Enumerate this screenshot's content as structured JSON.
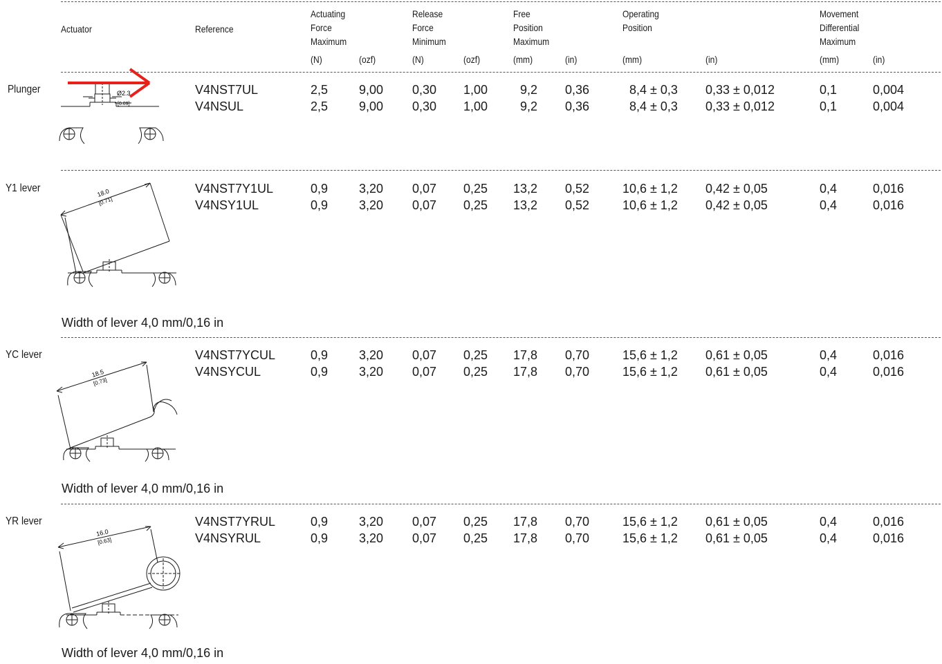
{
  "headers": [
    {
      "key": "actuator",
      "lines": [
        "Actuator"
      ]
    },
    {
      "key": "reference",
      "lines": [
        "Reference"
      ]
    },
    {
      "key": "actuating",
      "lines": [
        "Actuating",
        "Force",
        "Maximum"
      ]
    },
    {
      "key": "release",
      "lines": [
        "Release",
        "Force",
        "Minimum"
      ]
    },
    {
      "key": "free",
      "lines": [
        "Free",
        "Position",
        "Maximum"
      ]
    },
    {
      "key": "operating",
      "lines": [
        "Operating",
        "Position"
      ]
    },
    {
      "key": "movement",
      "lines": [
        "Movement",
        "Differential",
        "Maximum"
      ]
    }
  ],
  "units": [
    "(N)",
    "(ozf)",
    "(N)",
    "(ozf)",
    "(mm)",
    "(in)",
    "(mm)",
    "(in)",
    "(mm)",
    "(in)"
  ],
  "groups": [
    {
      "label": "Plunger",
      "dim_mm": "Ø2.3",
      "dim_in": "[0.09]",
      "note": "",
      "rows": [
        [
          "V4NST7UL",
          "2,5",
          "9,00",
          "0,30",
          "1,00",
          "9,2",
          "0,36",
          "8,4 ± 0,3",
          "0,33 ± 0,012",
          "0,1",
          "0,004"
        ],
        [
          "V4NSUL",
          "2,5",
          "9,00",
          "0,30",
          "1,00",
          "9,2",
          "0,36",
          "8,4 ± 0,3",
          "0,33 ± 0,012",
          "0,1",
          "0,004"
        ]
      ]
    },
    {
      "label": "Y1 lever",
      "dim_mm": "18.0",
      "dim_in": "[0.71]",
      "note": "Width of lever 4,0 mm/0,16 in",
      "rows": [
        [
          "V4NST7Y1UL",
          "0,9",
          "3,20",
          "0,07",
          "0,25",
          "13,2",
          "0,52",
          "10,6 ± 1,2",
          "0,42 ± 0,05",
          "0,4",
          "0,016"
        ],
        [
          "V4NSY1UL",
          "0,9",
          "3,20",
          "0,07",
          "0,25",
          "13,2",
          "0,52",
          "10,6 ± 1,2",
          "0,42 ± 0,05",
          "0,4",
          "0,016"
        ]
      ]
    },
    {
      "label": "YC lever",
      "dim_mm": "18.5",
      "dim_in": "[0.73]",
      "note": "Width of lever 4,0 mm/0,16 in",
      "rows": [
        [
          "V4NST7YCUL",
          "0,9",
          "3,20",
          "0,07",
          "0,25",
          "17,8",
          "0,70",
          "15,6 ± 1,2",
          "0,61 ± 0,05",
          "0,4",
          "0,016"
        ],
        [
          "V4NSYCUL",
          "0,9",
          "3,20",
          "0,07",
          "0,25",
          "17,8",
          "0,70",
          "15,6 ± 1,2",
          "0,61 ± 0,05",
          "0,4",
          "0,016"
        ]
      ]
    },
    {
      "label": "YR lever",
      "dim_mm": "16.0",
      "dim_in": "[0.63]",
      "note": "Width of lever 4,0 mm/0,16 in",
      "rows": [
        [
          "V4NST7YRUL",
          "0,9",
          "3,20",
          "0,07",
          "0,25",
          "17,8",
          "0,70",
          "15,6 ± 1,2",
          "0,61 ± 0,05",
          "0,4",
          "0,016"
        ],
        [
          "V4NSYRUL",
          "0,9",
          "3,20",
          "0,07",
          "0,25",
          "17,8",
          "0,70",
          "15,6 ± 1,2",
          "0,61 ± 0,05",
          "0,4",
          "0,016"
        ]
      ]
    }
  ],
  "colors": {
    "arrow": "#e8201a",
    "ink": "#1a1a1a"
  }
}
